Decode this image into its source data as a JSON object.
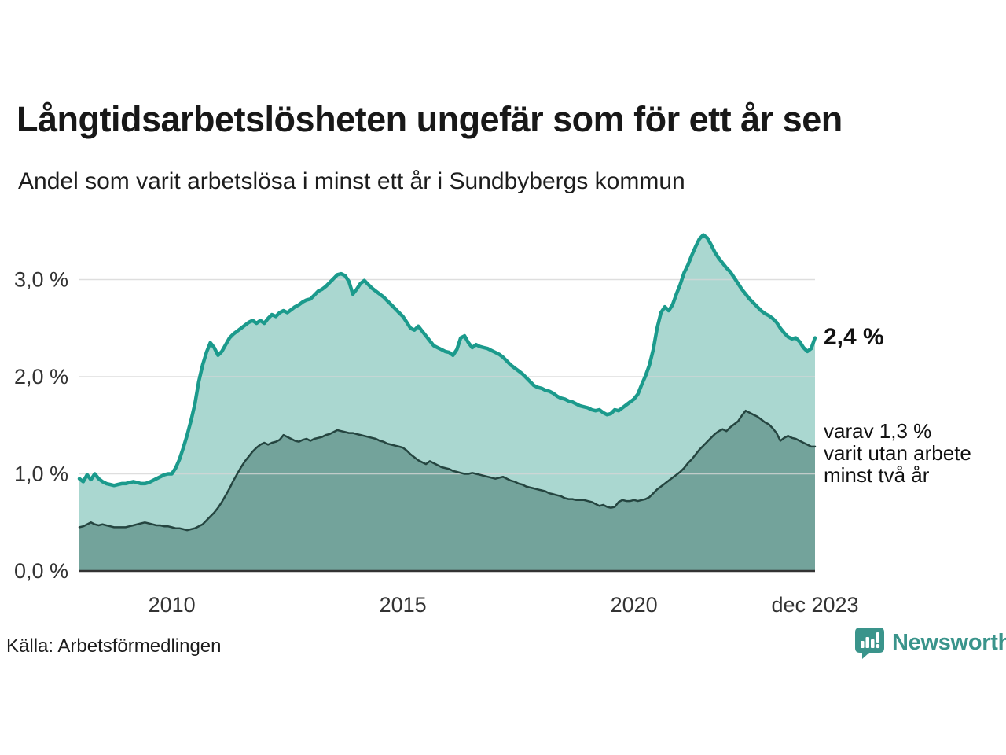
{
  "header": {
    "title": "Långtidsarbetslösheten ungefär som för ett år sen",
    "subtitle": "Andel som varit arbetslösa i minst ett år i Sundbybergs kommun"
  },
  "chart_data": {
    "type": "area",
    "title": "Långtidsarbetslösheten ungefär som för ett år sen",
    "subtitle": "Andel som varit arbetslösa i minst ett år i Sundbybergs kommun",
    "unit": "%",
    "frequency": "monthly",
    "x_start": "2008-01",
    "x_end": "2023-12",
    "ylim": [
      0,
      3.6
    ],
    "grid": true,
    "legend_position": "right-edge-labels",
    "y_ticks": [
      {
        "value": 0,
        "label": "0,0 %"
      },
      {
        "value": 1,
        "label": "1,0 %"
      },
      {
        "value": 2,
        "label": "2,0 %"
      },
      {
        "value": 3,
        "label": "3,0 %"
      }
    ],
    "x_ticks": [
      {
        "index": 24,
        "label": "2010"
      },
      {
        "index": 84,
        "label": "2015"
      },
      {
        "index": 144,
        "label": "2020"
      },
      {
        "index": 191,
        "label": "dec 2023"
      }
    ],
    "series": [
      {
        "name": "Andel som varit arbetslösa i minst ett år",
        "line_color": "#1b9a8c",
        "fill_color": "#aad7d0",
        "end_label": "2,4 %",
        "end_value": 2.4,
        "values": [
          0.95,
          0.92,
          0.99,
          0.94,
          1.0,
          0.95,
          0.92,
          0.9,
          0.89,
          0.88,
          0.89,
          0.9,
          0.9,
          0.91,
          0.92,
          0.91,
          0.9,
          0.9,
          0.91,
          0.93,
          0.95,
          0.97,
          0.99,
          1.0,
          1.0,
          1.06,
          1.15,
          1.27,
          1.4,
          1.55,
          1.72,
          1.95,
          2.12,
          2.25,
          2.35,
          2.3,
          2.22,
          2.26,
          2.33,
          2.4,
          2.44,
          2.47,
          2.5,
          2.53,
          2.56,
          2.58,
          2.55,
          2.58,
          2.55,
          2.6,
          2.64,
          2.62,
          2.66,
          2.68,
          2.66,
          2.69,
          2.72,
          2.74,
          2.77,
          2.79,
          2.8,
          2.84,
          2.88,
          2.9,
          2.93,
          2.97,
          3.01,
          3.05,
          3.06,
          3.04,
          2.98,
          2.85,
          2.9,
          2.96,
          2.99,
          2.95,
          2.91,
          2.88,
          2.85,
          2.82,
          2.78,
          2.74,
          2.7,
          2.66,
          2.62,
          2.56,
          2.5,
          2.48,
          2.52,
          2.47,
          2.42,
          2.37,
          2.32,
          2.3,
          2.28,
          2.26,
          2.25,
          2.22,
          2.28,
          2.4,
          2.42,
          2.35,
          2.3,
          2.33,
          2.31,
          2.3,
          2.29,
          2.27,
          2.25,
          2.23,
          2.2,
          2.16,
          2.12,
          2.09,
          2.06,
          2.03,
          1.99,
          1.95,
          1.91,
          1.89,
          1.88,
          1.86,
          1.85,
          1.83,
          1.8,
          1.78,
          1.77,
          1.75,
          1.74,
          1.72,
          1.7,
          1.69,
          1.68,
          1.66,
          1.65,
          1.66,
          1.63,
          1.61,
          1.62,
          1.66,
          1.65,
          1.68,
          1.71,
          1.74,
          1.77,
          1.82,
          1.92,
          2.01,
          2.12,
          2.28,
          2.5,
          2.66,
          2.72,
          2.68,
          2.74,
          2.85,
          2.95,
          3.07,
          3.15,
          3.25,
          3.34,
          3.42,
          3.46,
          3.43,
          3.36,
          3.28,
          3.22,
          3.17,
          3.12,
          3.08,
          3.02,
          2.96,
          2.9,
          2.85,
          2.8,
          2.76,
          2.72,
          2.68,
          2.65,
          2.63,
          2.6,
          2.56,
          2.5,
          2.45,
          2.41,
          2.39,
          2.4,
          2.36,
          2.3,
          2.26,
          2.29,
          2.4
        ]
      },
      {
        "name": "varav utan arbete minst två år",
        "line_color": "#254540",
        "fill_color": "#73a39b",
        "end_label": "varav 1,3 % varit utan arbete minst två år",
        "end_label_lines": [
          "varav 1,3 %",
          "varit utan arbete",
          "minst två år"
        ],
        "end_value": 1.3,
        "values": [
          0.45,
          0.46,
          0.48,
          0.5,
          0.48,
          0.47,
          0.48,
          0.47,
          0.46,
          0.45,
          0.45,
          0.45,
          0.45,
          0.46,
          0.47,
          0.48,
          0.49,
          0.5,
          0.49,
          0.48,
          0.47,
          0.47,
          0.46,
          0.46,
          0.45,
          0.44,
          0.44,
          0.43,
          0.42,
          0.43,
          0.44,
          0.46,
          0.48,
          0.52,
          0.56,
          0.6,
          0.65,
          0.71,
          0.78,
          0.85,
          0.93,
          1.0,
          1.07,
          1.13,
          1.18,
          1.23,
          1.27,
          1.3,
          1.32,
          1.3,
          1.32,
          1.33,
          1.35,
          1.4,
          1.38,
          1.36,
          1.34,
          1.33,
          1.35,
          1.36,
          1.34,
          1.36,
          1.37,
          1.38,
          1.4,
          1.41,
          1.43,
          1.45,
          1.44,
          1.43,
          1.42,
          1.42,
          1.41,
          1.4,
          1.39,
          1.38,
          1.37,
          1.36,
          1.34,
          1.33,
          1.31,
          1.3,
          1.29,
          1.28,
          1.27,
          1.24,
          1.2,
          1.17,
          1.14,
          1.12,
          1.1,
          1.13,
          1.11,
          1.09,
          1.07,
          1.06,
          1.05,
          1.03,
          1.02,
          1.01,
          1.0,
          1.0,
          1.01,
          1.0,
          0.99,
          0.98,
          0.97,
          0.96,
          0.95,
          0.96,
          0.97,
          0.95,
          0.93,
          0.92,
          0.9,
          0.89,
          0.87,
          0.86,
          0.85,
          0.84,
          0.83,
          0.82,
          0.8,
          0.79,
          0.78,
          0.77,
          0.75,
          0.74,
          0.74,
          0.73,
          0.73,
          0.73,
          0.72,
          0.71,
          0.69,
          0.67,
          0.68,
          0.66,
          0.65,
          0.66,
          0.71,
          0.73,
          0.72,
          0.72,
          0.73,
          0.72,
          0.73,
          0.74,
          0.76,
          0.8,
          0.84,
          0.87,
          0.9,
          0.93,
          0.96,
          0.99,
          1.02,
          1.06,
          1.11,
          1.15,
          1.2,
          1.25,
          1.29,
          1.33,
          1.37,
          1.41,
          1.44,
          1.46,
          1.44,
          1.48,
          1.51,
          1.54,
          1.6,
          1.65,
          1.63,
          1.61,
          1.59,
          1.56,
          1.53,
          1.51,
          1.47,
          1.42,
          1.34,
          1.37,
          1.39,
          1.37,
          1.36,
          1.34,
          1.32,
          1.3,
          1.28,
          1.28
        ]
      }
    ]
  },
  "footer": {
    "source": "Källa: Arbetsförmedlingen",
    "brand": "Newsworthy"
  },
  "colors": {
    "accent": "#1b9a8c",
    "accent_fill": "#aad7d0",
    "dark_series": "#254540",
    "dark_fill": "#73a39b",
    "brand": "#3a948b",
    "grid": "#d6d6d6",
    "axis": "#333333",
    "text": "#181818"
  }
}
